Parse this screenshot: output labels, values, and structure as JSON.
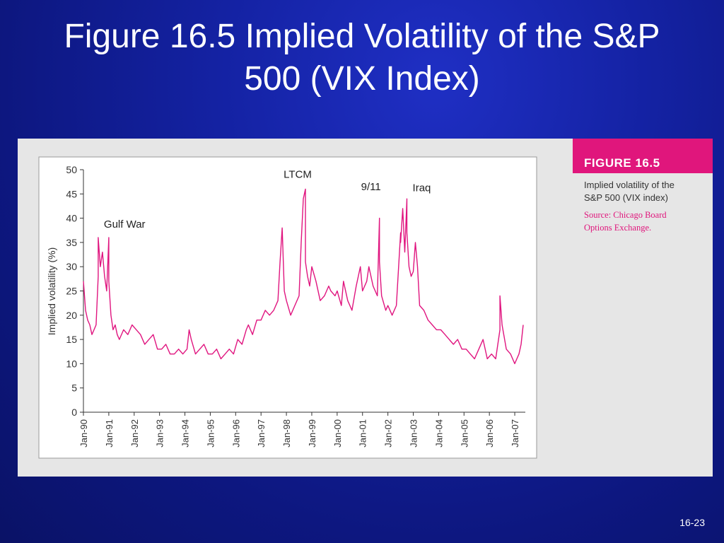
{
  "slide": {
    "title_line1": "Figure 16.5 Implied Volatility of the S&P",
    "title_line2": "500 (VIX Index)",
    "page_number": "16-23"
  },
  "caption": {
    "figure_label": "FIGURE 16.5",
    "description_line1": "Implied volatility of the",
    "description_line2": "S&P 500 (VIX index)",
    "source_line1": "Source: Chicago Board",
    "source_line2": "Options Exchange."
  },
  "colors": {
    "series": "#e0157f",
    "accent": "#e0167c",
    "axis": "#333333"
  },
  "chart_data": {
    "type": "line",
    "title": "",
    "xlabel": "",
    "ylabel": "Implied volatility (%)",
    "ylim": [
      0,
      50
    ],
    "yticks": [
      0,
      5,
      10,
      15,
      20,
      25,
      30,
      35,
      40,
      45,
      50
    ],
    "xlim": [
      "1990-01",
      "2007-06"
    ],
    "xticks": [
      "Jan-90",
      "Jan-91",
      "Jan-92",
      "Jan-93",
      "Jan-94",
      "Jan-95",
      "Jan-96",
      "Jan-97",
      "Jan-98",
      "Jan-99",
      "Jan-00",
      "Jan-01",
      "Jan-02",
      "Jan-03",
      "Jan-04",
      "Jan-05",
      "Jan-06",
      "Jan-07"
    ],
    "grid": false,
    "legend": "none",
    "annotations": [
      {
        "text": "Gulf War",
        "x": "1990-08",
        "y": 36
      },
      {
        "text": "LTCM",
        "x": "1998-09",
        "y": 46
      },
      {
        "text": "9/11",
        "x": "2001-09",
        "y": 44
      },
      {
        "text": "Iraq",
        "x": "2002-10",
        "y": 45
      }
    ],
    "series": [
      {
        "x": [
          "1990-01",
          "1990-02",
          "1990-03",
          "1990-04",
          "1990-05",
          "1990-06",
          "1990-07",
          "1990-08",
          "1990-08",
          "1990-09",
          "1990-10",
          "1990-11",
          "1990-12",
          "1991-01",
          "1991-01",
          "1991-02",
          "1991-03",
          "1991-04",
          "1991-05",
          "1991-06",
          "1991-08",
          "1991-10",
          "1991-12",
          "1992-02",
          "1992-04",
          "1992-06",
          "1992-08",
          "1992-10",
          "1992-12",
          "1993-02",
          "1993-04",
          "1993-06",
          "1993-08",
          "1993-10",
          "1993-12",
          "1994-02",
          "1994-03",
          "1994-04",
          "1994-06",
          "1994-08",
          "1994-10",
          "1994-12",
          "1995-02",
          "1995-04",
          "1995-06",
          "1995-08",
          "1995-10",
          "1995-12",
          "1996-02",
          "1996-04",
          "1996-06",
          "1996-07",
          "1996-09",
          "1996-11",
          "1997-01",
          "1997-03",
          "1997-05",
          "1997-07",
          "1997-09",
          "1997-10",
          "1997-11",
          "1997-12",
          "1998-01",
          "1998-03",
          "1998-05",
          "1998-07",
          "1998-08",
          "1998-09",
          "1998-10",
          "1998-10",
          "1998-11",
          "1998-12",
          "1999-01",
          "1999-03",
          "1999-05",
          "1999-07",
          "1999-09",
          "1999-10",
          "1999-12",
          "2000-01",
          "2000-03",
          "2000-04",
          "2000-06",
          "2000-08",
          "2000-10",
          "2000-12",
          "2001-01",
          "2001-03",
          "2001-04",
          "2001-06",
          "2001-08",
          "2001-09",
          "2001-09",
          "2001-10",
          "2001-12",
          "2002-01",
          "2002-03",
          "2002-05",
          "2002-07",
          "2002-07",
          "2002-08",
          "2002-09",
          "2002-10",
          "2002-10",
          "2002-11",
          "2002-12",
          "2003-01",
          "2003-02",
          "2003-03",
          "2003-04",
          "2003-06",
          "2003-08",
          "2003-10",
          "2003-12",
          "2004-02",
          "2004-04",
          "2004-06",
          "2004-08",
          "2004-10",
          "2004-12",
          "2005-02",
          "2005-04",
          "2005-06",
          "2005-08",
          "2005-10",
          "2005-12",
          "2006-02",
          "2006-04",
          "2006-06",
          "2006-06",
          "2006-07",
          "2006-09",
          "2006-11",
          "2007-01",
          "2007-02",
          "2007-03",
          "2007-04",
          "2007-05"
        ],
        "values": [
          27,
          21,
          19,
          18,
          16,
          17,
          18,
          28,
          36,
          30,
          33,
          28,
          25,
          36,
          27,
          20,
          17,
          18,
          16,
          15,
          17,
          16,
          18,
          17,
          16,
          14,
          15,
          16,
          13,
          13,
          14,
          12,
          12,
          13,
          12,
          13,
          17,
          15,
          12,
          13,
          14,
          12,
          12,
          13,
          11,
          12,
          13,
          12,
          15,
          14,
          17,
          18,
          16,
          19,
          19,
          21,
          20,
          21,
          23,
          31,
          38,
          25,
          23,
          20,
          22,
          24,
          35,
          44,
          46,
          31,
          28,
          26,
          30,
          27,
          23,
          24,
          26,
          25,
          24,
          25,
          22,
          27,
          23,
          21,
          26,
          30,
          25,
          27,
          30,
          26,
          24,
          40,
          31,
          24,
          21,
          22,
          20,
          22,
          37,
          35,
          42,
          33,
          44,
          37,
          30,
          28,
          29,
          35,
          30,
          22,
          21,
          19,
          18,
          17,
          17,
          16,
          15,
          14,
          15,
          13,
          13,
          12,
          11,
          13,
          15,
          11,
          12,
          11,
          17,
          24,
          18,
          13,
          12,
          10,
          11,
          12,
          14,
          18
        ]
      }
    ]
  }
}
